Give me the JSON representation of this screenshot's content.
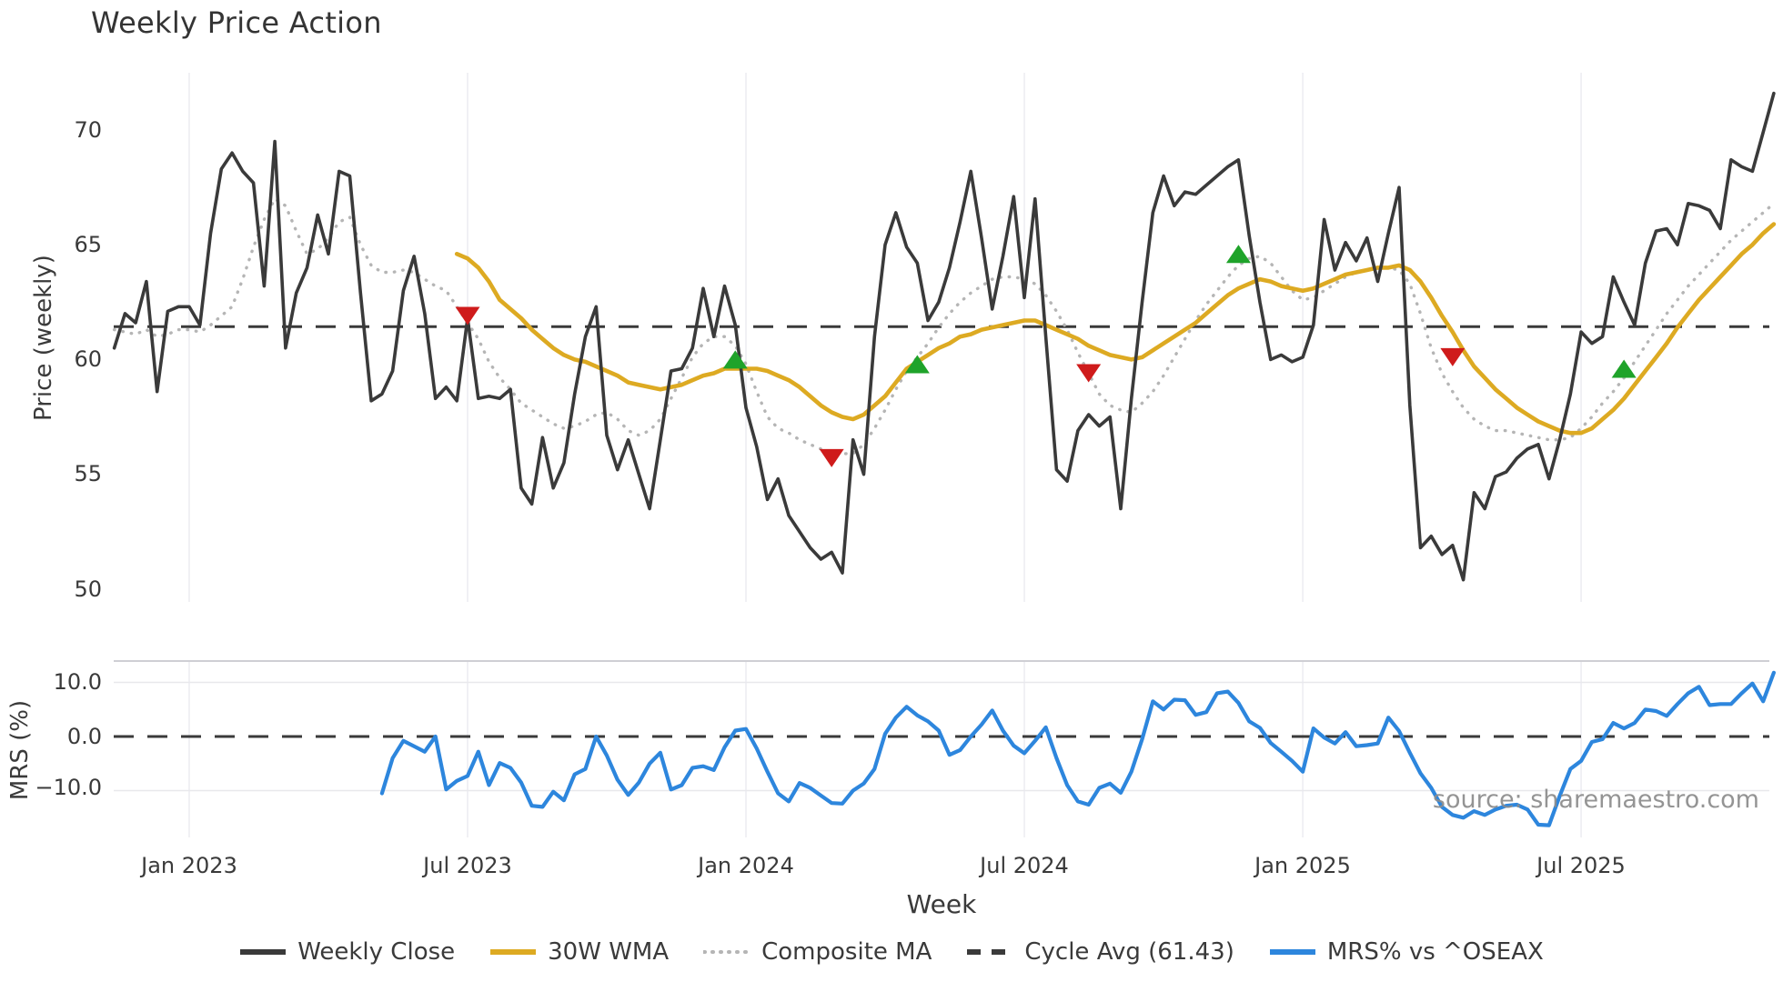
{
  "title": "Weekly Price Action",
  "xlabel": "Week",
  "source_text": "source: sharemaestro.com",
  "top_chart": {
    "ylabel": "Price (weekly)",
    "y_ticks": [
      "70",
      "65",
      "60",
      "55",
      "50"
    ],
    "y_tick_values": [
      70,
      65,
      60,
      55,
      50
    ],
    "cycle_avg": 61.43
  },
  "bottom_chart": {
    "ylabel": "MRS (%)",
    "y_ticks": [
      "10.0",
      "0.0",
      "−10.0"
    ],
    "y_tick_values": [
      10,
      0,
      -10
    ],
    "zero_line": 0
  },
  "x_ticks": [
    {
      "week": 7,
      "label": "Jan 2023"
    },
    {
      "week": 33,
      "label": "Jul 2023"
    },
    {
      "week": 59,
      "label": "Jan 2024"
    },
    {
      "week": 85,
      "label": "Jul 2024"
    },
    {
      "week": 111,
      "label": "Jan 2025"
    },
    {
      "week": 137,
      "label": "Jul 2025"
    }
  ],
  "legend": [
    {
      "label": "Weekly Close",
      "swatch": "solid",
      "color_key": "close"
    },
    {
      "label": "30W WMA",
      "swatch": "solid",
      "color_key": "wma"
    },
    {
      "label": "Composite MA",
      "swatch": "dotted",
      "color_key": "composite"
    },
    {
      "label": "Cycle Avg (61.43)",
      "swatch": "dashed",
      "color_key": "cycle"
    },
    {
      "label": "MRS% vs ^OSEAX",
      "swatch": "solid",
      "color_key": "mrs"
    }
  ],
  "colors": {
    "close": "#3a3a3a",
    "wma": "#ddaa22",
    "composite": "#b5b5b5",
    "cycle": "#3a3a3a",
    "mrs": "#2d86dd",
    "buy": "#1fa32a",
    "sell": "#cf1b1b",
    "grid_v": "#ededf2",
    "grid_h": "#e8e8ec",
    "spine": "#cfcfd4"
  },
  "chart_data": {
    "type": "line",
    "title": "Weekly Price Action",
    "xlabel": "Week",
    "x_unit": "week_index",
    "x_range_weeks": [
      0,
      155
    ],
    "panels": [
      {
        "name": "price",
        "ylabel": "Price (weekly)",
        "ylim": [
          49.3,
          72.6
        ],
        "legend_position": "bottom"
      },
      {
        "name": "mrs",
        "ylabel": "MRS (%)",
        "ylim": [
          -18.5,
          14.0
        ]
      }
    ],
    "cycle_avg": 61.43,
    "series": [
      {
        "name": "Weekly Close",
        "panel": "price",
        "start_week": 0,
        "values": [
          60.5,
          62.0,
          61.6,
          63.4,
          58.6,
          62.1,
          62.3,
          62.3,
          61.5,
          65.5,
          68.3,
          69.0,
          68.2,
          67.7,
          63.2,
          69.5,
          60.5,
          62.9,
          64.0,
          66.3,
          64.6,
          68.2,
          68.0,
          62.9,
          58.2,
          58.5,
          59.5,
          63.0,
          64.5,
          62.0,
          58.3,
          58.8,
          58.2,
          61.8,
          58.3,
          58.4,
          58.3,
          58.7,
          54.4,
          53.7,
          56.6,
          54.4,
          55.5,
          58.5,
          61.0,
          62.3,
          56.7,
          55.2,
          56.5,
          55.0,
          53.5,
          56.5,
          59.5,
          59.6,
          60.5,
          63.1,
          61.0,
          63.2,
          61.5,
          57.9,
          56.2,
          53.9,
          54.8,
          53.2,
          52.5,
          51.8,
          51.3,
          51.6,
          50.7,
          56.5,
          55.0,
          61.0,
          65.0,
          66.4,
          64.9,
          64.2,
          61.7,
          62.5,
          64.0,
          66.0,
          68.2,
          65.3,
          62.2,
          64.5,
          67.1,
          62.7,
          67.0,
          61.0,
          55.2,
          54.7,
          56.9,
          57.6,
          57.1,
          57.5,
          53.5,
          58.3,
          62.5,
          66.4,
          68.0,
          66.7,
          67.3,
          67.2,
          67.6,
          68.0,
          68.4,
          68.7,
          65.4,
          62.5,
          60.0,
          60.2,
          59.9,
          60.1,
          61.5,
          66.1,
          63.9,
          65.1,
          64.3,
          65.3,
          63.4,
          65.5,
          67.5,
          58.0,
          51.8,
          52.3,
          51.5,
          51.9,
          50.4,
          54.2,
          53.5,
          54.9,
          55.1,
          55.7,
          56.1,
          56.3,
          54.8,
          56.5,
          58.5,
          61.2,
          60.7,
          61.0,
          63.6,
          62.5,
          61.5,
          64.2,
          65.6,
          65.7,
          65.0,
          66.8,
          66.7,
          66.5,
          65.7,
          68.7,
          68.4,
          68.2,
          69.9,
          71.6
        ]
      },
      {
        "name": "Composite MA",
        "panel": "price",
        "start_week": 0,
        "values": [
          61.3,
          61.2,
          61.1,
          61.3,
          61.0,
          61.1,
          61.3,
          61.3,
          61.2,
          61.5,
          61.9,
          62.3,
          63.5,
          64.9,
          66.1,
          67.0,
          66.7,
          65.6,
          64.6,
          64.8,
          65.3,
          66.0,
          66.2,
          65.0,
          64.1,
          63.8,
          63.8,
          63.9,
          63.8,
          63.5,
          63.2,
          63.0,
          62.3,
          61.6,
          60.9,
          59.9,
          59.2,
          58.7,
          58.1,
          57.8,
          57.5,
          57.2,
          57.0,
          57.1,
          57.3,
          57.6,
          57.7,
          57.4,
          56.9,
          56.7,
          56.9,
          57.4,
          58.3,
          59.2,
          60.1,
          60.7,
          61.0,
          61.0,
          60.6,
          59.8,
          58.6,
          57.5,
          57.0,
          56.8,
          56.5,
          56.3,
          56.1,
          56.0,
          55.9,
          55.9,
          56.3,
          57.0,
          57.8,
          58.7,
          59.5,
          60.1,
          60.7,
          61.4,
          62.0,
          62.5,
          62.9,
          63.2,
          63.5,
          63.6,
          63.6,
          63.5,
          63.3,
          62.8,
          62.1,
          61.3,
          60.3,
          59.4,
          58.5,
          58.0,
          57.8,
          57.7,
          58.1,
          58.6,
          59.3,
          60.1,
          60.9,
          61.7,
          62.4,
          63.0,
          63.6,
          64.1,
          64.4,
          64.5,
          64.2,
          63.6,
          63.0,
          62.6,
          62.7,
          63.0,
          63.3,
          63.6,
          63.8,
          63.9,
          64.0,
          64.0,
          63.9,
          63.3,
          62.0,
          60.5,
          59.4,
          58.6,
          57.9,
          57.4,
          57.1,
          56.9,
          56.9,
          56.8,
          56.7,
          56.6,
          56.5,
          56.5,
          56.6,
          57.0,
          57.5,
          58.1,
          58.6,
          59.2,
          59.9,
          60.6,
          61.3,
          62.0,
          62.6,
          63.2,
          63.7,
          64.2,
          64.7,
          65.2,
          65.6,
          66.0,
          66.4,
          66.8
        ]
      },
      {
        "name": "30W WMA",
        "panel": "price",
        "start_week": 32,
        "values": [
          64.6,
          64.4,
          64.0,
          63.4,
          62.6,
          62.2,
          61.8,
          61.3,
          60.9,
          60.5,
          60.2,
          60.0,
          59.9,
          59.7,
          59.5,
          59.3,
          59.0,
          58.9,
          58.8,
          58.7,
          58.8,
          58.9,
          59.1,
          59.3,
          59.4,
          59.6,
          59.6,
          59.6,
          59.6,
          59.5,
          59.3,
          59.1,
          58.8,
          58.4,
          58.0,
          57.7,
          57.5,
          57.4,
          57.6,
          58.0,
          58.4,
          59.0,
          59.6,
          59.9,
          60.2,
          60.5,
          60.7,
          61.0,
          61.1,
          61.3,
          61.4,
          61.5,
          61.6,
          61.7,
          61.7,
          61.5,
          61.3,
          61.1,
          60.9,
          60.6,
          60.4,
          60.2,
          60.1,
          60.0,
          60.1,
          60.4,
          60.7,
          61.0,
          61.3,
          61.6,
          62.0,
          62.4,
          62.8,
          63.1,
          63.3,
          63.5,
          63.4,
          63.2,
          63.1,
          63.0,
          63.1,
          63.3,
          63.5,
          63.7,
          63.8,
          63.9,
          64.0,
          64.0,
          64.1,
          63.9,
          63.4,
          62.7,
          61.9,
          61.2,
          60.4,
          59.7,
          59.2,
          58.7,
          58.3,
          57.9,
          57.6,
          57.3,
          57.1,
          56.9,
          56.8,
          56.8,
          57.0,
          57.4,
          57.8,
          58.3,
          58.9,
          59.5,
          60.1,
          60.7,
          61.4,
          62.0,
          62.6,
          63.1,
          63.6,
          64.1,
          64.6,
          65.0,
          65.5,
          65.9
        ]
      },
      {
        "name": "MRS% vs ^OSEAX",
        "panel": "mrs",
        "start_week": 25,
        "values": [
          -10.5,
          -4.0,
          -0.8,
          -1.8,
          -2.8,
          0.0,
          -9.8,
          -8.2,
          -7.3,
          -2.8,
          -9.0,
          -4.9,
          -5.8,
          -8.5,
          -12.8,
          -13.0,
          -10.2,
          -11.8,
          -7.0,
          -6.0,
          0.0,
          -3.5,
          -8.0,
          -10.8,
          -8.5,
          -5.0,
          -3.0,
          -9.8,
          -9.0,
          -5.8,
          -5.5,
          -6.2,
          -2.0,
          1.1,
          1.4,
          -2.2,
          -6.5,
          -10.5,
          -12.0,
          -8.6,
          -9.5,
          -10.9,
          -12.3,
          -12.4,
          -10.0,
          -8.7,
          -6.0,
          0.5,
          3.5,
          5.5,
          3.9,
          2.8,
          1.1,
          -3.4,
          -2.5,
          0.0,
          2.2,
          4.8,
          1.1,
          -1.7,
          -3.1,
          -0.8,
          1.7,
          -4.0,
          -9.0,
          -12.0,
          -12.6,
          -9.5,
          -8.7,
          -10.4,
          -6.5,
          -0.5,
          6.5,
          5.0,
          6.8,
          6.7,
          4.0,
          4.5,
          8.0,
          8.3,
          6.2,
          2.8,
          1.6,
          -1.2,
          -2.8,
          -4.5,
          -6.5,
          1.5,
          -0.2,
          -1.3,
          0.8,
          -1.8,
          -1.6,
          -1.3,
          3.5,
          1.0,
          -3.0,
          -6.8,
          -9.5,
          -13.0,
          -14.5,
          -15.0,
          -13.8,
          -14.5,
          -13.5,
          -12.8,
          -12.6,
          -13.5,
          -16.3,
          -16.4,
          -11.0,
          -6.0,
          -4.5,
          -1.0,
          -0.5,
          2.5,
          1.5,
          2.5,
          5.0,
          4.7,
          3.8,
          6.0,
          8.0,
          9.2,
          5.8,
          6.0,
          6.0,
          8.0,
          9.8,
          6.5,
          11.8
        ]
      }
    ],
    "markers": [
      {
        "week": 33,
        "price": 61.9,
        "type": "sell"
      },
      {
        "week": 58,
        "price": 60.0,
        "type": "buy"
      },
      {
        "week": 67,
        "price": 55.7,
        "type": "sell"
      },
      {
        "week": 75,
        "price": 59.8,
        "type": "buy"
      },
      {
        "week": 91,
        "price": 59.4,
        "type": "sell"
      },
      {
        "week": 105,
        "price": 64.6,
        "type": "buy"
      },
      {
        "week": 125,
        "price": 60.1,
        "type": "sell"
      },
      {
        "week": 141,
        "price": 59.6,
        "type": "buy"
      }
    ]
  }
}
